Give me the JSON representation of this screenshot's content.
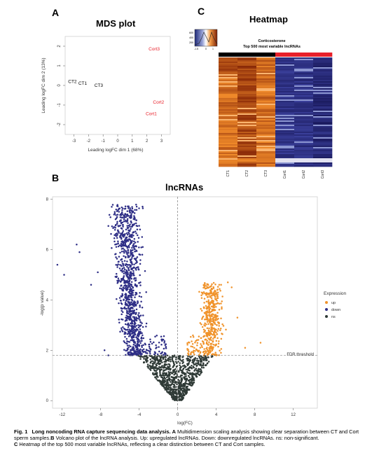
{
  "panels": {
    "a": {
      "letter": "A",
      "title": "MDS plot"
    },
    "b": {
      "letter": "B",
      "title": "lncRNAs"
    },
    "c": {
      "letter": "C",
      "title": "Heatmap"
    }
  },
  "heatmap": {
    "subtitle_1": "Corticosterone",
    "subtitle_2": "Top 500 most variable lncRNAs",
    "key_ticks": [
      "-1.5",
      "0",
      "1"
    ],
    "key_yticks": [
      "200",
      "400",
      "600"
    ],
    "columns": [
      "CT1",
      "CT2",
      "CT3",
      "Cort1",
      "Cort2",
      "Cort3"
    ],
    "group_colors": {
      "ct": "#000000",
      "cort": "#e8202a"
    },
    "colors": {
      "ct_high": "#f08a2a",
      "ct_dark": "#8a2a08",
      "cort_low": "#3a3f9a",
      "cort_dark": "#1a1a5e"
    }
  },
  "volcano": {
    "legend_title": "Expression",
    "legend_items": [
      {
        "label": "up",
        "color": "#f0932b"
      },
      {
        "label": "down",
        "color": "#2e2e86"
      },
      {
        "label": "ns",
        "color": "#2f3a36"
      }
    ],
    "threshold_label": "FDR threshold"
  },
  "caption": {
    "fig_label": "Fig. 1",
    "fig_title": "Long noncoding RNA capture sequencing data analysis.",
    "a_label": "A",
    "a_text": "Multidimension scaling analysis showing clear separation between CT and Cort sperm samples.",
    "b_label": "B",
    "b_text": "Volcano plot of the lncRNA analysis. Up: upregulated lncRNAs. Down: downregulated lncRNAs. ns: non-significant.",
    "c_label": "C",
    "c_text": "Heatmap of the top 500 most variable lncRNAs, reflecting a clear distinction between CT and Cort samples."
  },
  "chart_data": [
    {
      "type": "scatter",
      "title": "MDS plot",
      "xlabel": "Leading logFC dim 1 (68%)",
      "ylabel": "Leading logFC dim 2 (13%)",
      "xlim": [
        -3.6,
        3.6
      ],
      "ylim": [
        -2.5,
        2.5
      ],
      "xticks": [
        -3,
        -2,
        -1,
        0,
        1,
        2,
        3
      ],
      "yticks": [
        -2,
        -1,
        0,
        1,
        2
      ],
      "points": [
        {
          "label": "CT2",
          "x": -3.1,
          "y": 0.2,
          "group": "ct"
        },
        {
          "label": "CT1",
          "x": -2.4,
          "y": 0.1,
          "group": "ct"
        },
        {
          "label": "CT3",
          "x": -1.3,
          "y": 0.0,
          "group": "ct"
        },
        {
          "label": "Cort3",
          "x": 2.5,
          "y": 1.85,
          "group": "cort"
        },
        {
          "label": "Cort2",
          "x": 2.8,
          "y": -0.85,
          "group": "cort"
        },
        {
          "label": "Cort1",
          "x": 2.3,
          "y": -1.45,
          "group": "cort"
        }
      ],
      "colors": {
        "ct": "#000000",
        "cort": "#e8202a"
      }
    },
    {
      "type": "scatter",
      "title": "lncRNAs",
      "xlabel": "log(FC)",
      "ylabel": "-log(p value)",
      "xlim": [
        -13,
        14.5
      ],
      "ylim": [
        -0.3,
        8.1
      ],
      "xticks": [
        -12,
        -8,
        -4,
        0,
        4,
        8,
        12
      ],
      "yticks": [
        0,
        2,
        4,
        6,
        8
      ],
      "fdr_threshold": 1.8,
      "series": [
        {
          "name": "up",
          "color": "#f0932b",
          "count": 470
        },
        {
          "name": "down",
          "color": "#2e2e86",
          "count": 1100
        },
        {
          "name": "ns",
          "color": "#2f3a36",
          "count": 900
        }
      ]
    }
  ]
}
